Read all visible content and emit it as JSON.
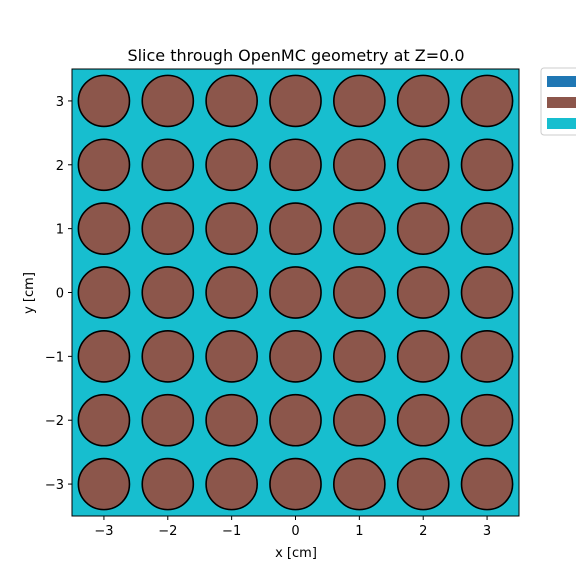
{
  "chart_data": {
    "type": "heatmap",
    "title": "Slice through OpenMC geometry at Z=0.0",
    "xlabel": "x [cm]",
    "ylabel": "y [cm]",
    "xlim": [
      -3.5,
      3.5
    ],
    "ylim": [
      -3.5,
      3.5
    ],
    "xticks": [
      -3,
      -2,
      -1,
      0,
      1,
      2,
      3
    ],
    "yticks": [
      -3,
      -2,
      -1,
      0,
      1,
      2,
      3
    ],
    "xtick_labels": [
      "−3",
      "−2",
      "−1",
      "0",
      "1",
      "2",
      "3"
    ],
    "ytick_labels": [
      "−3",
      "−2",
      "−1",
      "0",
      "1",
      "2",
      "3"
    ],
    "grid": false,
    "legend_position": "outside upper-right",
    "background_color": "#17becf",
    "pin_color": "#8c564b",
    "pin_outline_color": "#000000",
    "pin_radius": 0.4,
    "pin_centers_x": [
      -3,
      -2,
      -1,
      0,
      1,
      2,
      3
    ],
    "pin_centers_y": [
      -3,
      -2,
      -1,
      0,
      1,
      2,
      3
    ],
    "legend_colors": [
      "#1f77b4",
      "#8c564b",
      "#17becf"
    ]
  }
}
